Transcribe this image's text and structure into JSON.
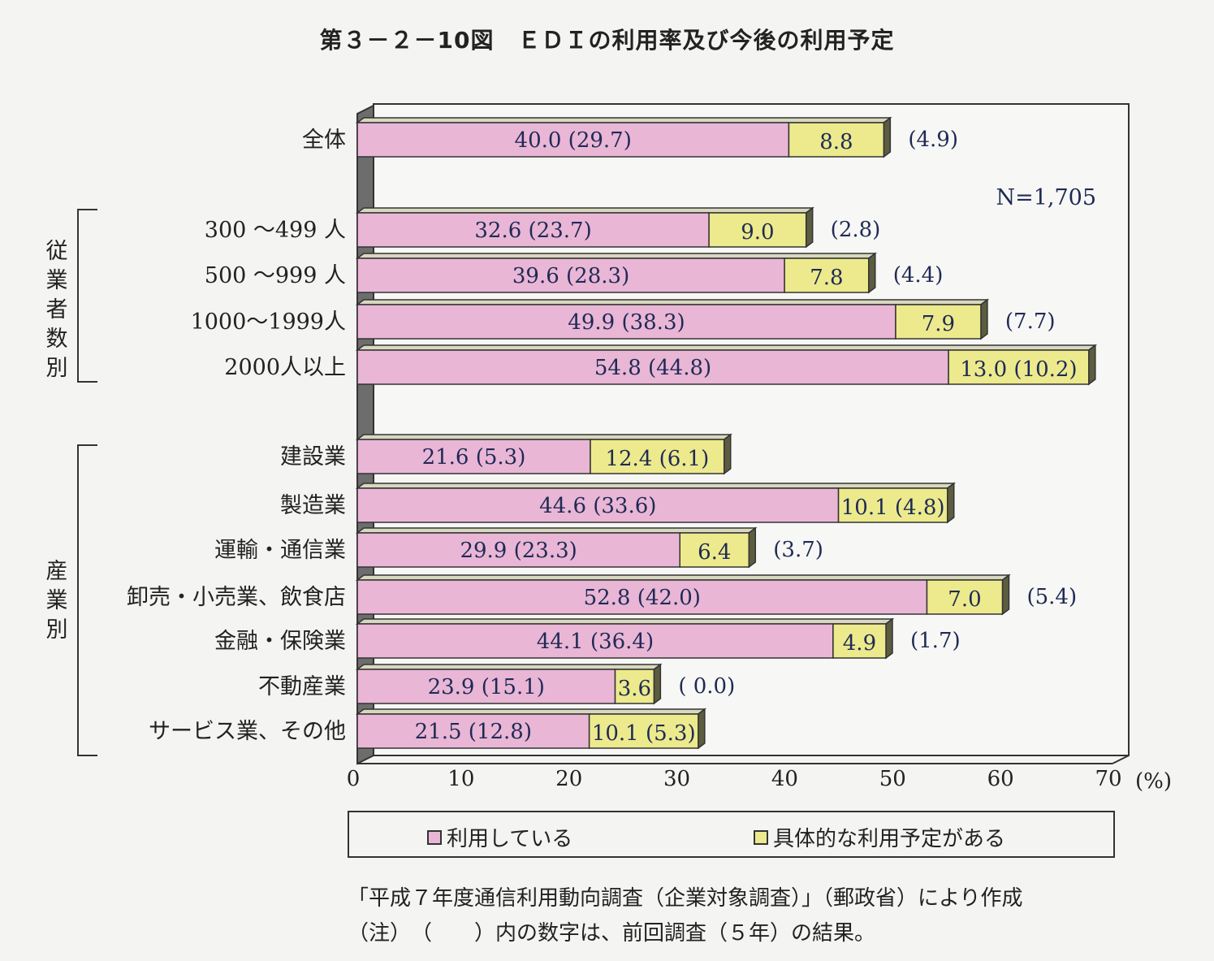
{
  "title": "第３－２－10図　ＥＤＩの利用率及び今後の利用予定",
  "n_label": "N=1,705",
  "unit_label": "(%)",
  "group_labels": [
    "従業者数別",
    "産業別"
  ],
  "legend": {
    "using": "利用している",
    "planned": "具体的な利用予定がある"
  },
  "source_note": "「平成７年度通信利用動向調査（企業対象調査）」（郵政省）により作成",
  "footnote": "（注）　（　　）内の数字は、前回調査（５年）の結果。",
  "colors": {
    "using": "#e9b6d6",
    "planned": "#ecea8c",
    "floor": "#6d6d6d",
    "frame": "#333333"
  },
  "chart_data": {
    "type": "bar",
    "orientation": "horizontal",
    "stacked": true,
    "xlim": [
      0,
      70
    ],
    "xticks": [
      0,
      10,
      20,
      30,
      40,
      50,
      60,
      70
    ],
    "categories": [
      "全体",
      "300 ～499 人",
      "500 ～999 人",
      "1000～1999人",
      "2000人以上",
      "建設業",
      "製造業",
      "運輸・通信業",
      "卸売・小売業、飲食店",
      "金融・保険業",
      "不動産業",
      "サービス業、その他"
    ],
    "series": [
      {
        "name": "利用している",
        "values": [
          40.0,
          32.6,
          39.6,
          49.9,
          54.8,
          21.6,
          44.6,
          29.9,
          52.8,
          44.1,
          23.9,
          21.5
        ],
        "labels": [
          "40.0 (29.7)",
          "32.6 (23.7)",
          "39.6 (28.3)",
          "49.9 (38.3)",
          "54.8 (44.8)",
          "21.6 (5.3)",
          "44.6 (33.6)",
          "29.9 (23.3)",
          "52.8 (42.0)",
          "44.1 (36.4)",
          "23.9 (15.1)",
          "21.5 (12.8)"
        ]
      },
      {
        "name": "具体的な利用予定がある",
        "values": [
          8.8,
          9.0,
          7.8,
          7.9,
          13.0,
          12.4,
          10.1,
          6.4,
          7.0,
          4.9,
          3.6,
          10.1
        ],
        "labels": [
          "8.8",
          "9.0",
          "7.8",
          "7.9",
          "13.0 (10.2)",
          "12.4 (6.1)",
          "10.1 (4.8)",
          "6.4",
          "7.0",
          "4.9",
          "3.6",
          "10.1 (5.3)"
        ]
      }
    ],
    "outside_labels": [
      "(4.9)",
      "(2.8)",
      "(4.4)",
      "(7.7)",
      "",
      "",
      "",
      "(3.7)",
      "(5.4)",
      "(1.7)",
      "( 0.0)",
      ""
    ]
  }
}
